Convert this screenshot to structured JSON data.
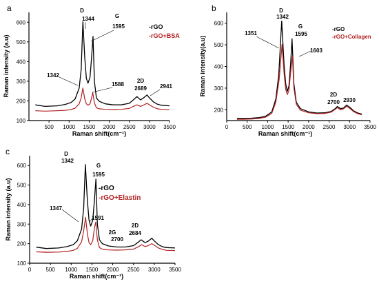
{
  "chart_data": [
    {
      "panel": "a",
      "type": "line",
      "xlabel": "Raman shift(cm⁻¹)",
      "ylabel": "Raman intensity (a.u)",
      "xlim": [
        0,
        3500
      ],
      "ylim": [
        100,
        650
      ],
      "xticks": [
        500,
        1000,
        1500,
        2000,
        2500,
        3000,
        3500
      ],
      "yticks": [
        100,
        200,
        300,
        400,
        500,
        600
      ],
      "series": [
        {
          "name": "-rGO",
          "color": "#000000",
          "x": [
            160,
            400,
            700,
            900,
            1050,
            1150,
            1250,
            1300,
            1344,
            1390,
            1430,
            1470,
            1520,
            1560,
            1595,
            1630,
            1680,
            1750,
            1900,
            2100,
            2300,
            2500,
            2600,
            2689,
            2780,
            2850,
            2941,
            3000,
            3100,
            3200,
            3300,
            3500
          ],
          "y": [
            180,
            172,
            175,
            182,
            192,
            210,
            265,
            360,
            602,
            420,
            315,
            290,
            320,
            420,
            528,
            300,
            215,
            198,
            185,
            180,
            180,
            188,
            205,
            222,
            205,
            215,
            230,
            215,
            195,
            183,
            178,
            175
          ]
        },
        {
          "name": "-rGO+BSA",
          "color": "#b22222",
          "x": [
            160,
            400,
            700,
            900,
            1050,
            1150,
            1250,
            1300,
            1342,
            1390,
            1430,
            1470,
            1520,
            1560,
            1588,
            1630,
            1680,
            1750,
            1900,
            2100,
            2300,
            2500,
            2600,
            2689,
            2780,
            2850,
            2941,
            3000,
            3100,
            3200,
            3300,
            3500
          ],
          "y": [
            150,
            148,
            150,
            152,
            156,
            163,
            185,
            215,
            265,
            210,
            185,
            178,
            185,
            215,
            243,
            190,
            165,
            160,
            157,
            156,
            157,
            162,
            172,
            180,
            172,
            178,
            188,
            180,
            168,
            160,
            157,
            155
          ]
        }
      ],
      "annotations": [
        "D",
        "1344",
        "G",
        "1595",
        "1342",
        "1588",
        "2D",
        "2689",
        "2941"
      ]
    },
    {
      "panel": "b",
      "type": "line",
      "xlabel": "Raman shift(cm⁻¹)",
      "ylabel": "Raman intensity(a.u)",
      "xlim": [
        0,
        3500
      ],
      "ylim": [
        150,
        650
      ],
      "xticks": [
        0,
        500,
        1000,
        1500,
        2000,
        2500,
        3000,
        3500
      ],
      "yticks": [
        200,
        300,
        400,
        500,
        600
      ],
      "series": [
        {
          "name": "-rGO",
          "color": "#000000",
          "x": [
            250,
            400,
            600,
            800,
            950,
            1100,
            1200,
            1270,
            1342,
            1400,
            1440,
            1480,
            1520,
            1560,
            1595,
            1640,
            1700,
            1800,
            2000,
            2200,
            2400,
            2550,
            2650,
            2700,
            2780,
            2850,
            2930,
            3000,
            3100,
            3200,
            3300
          ],
          "y": [
            160,
            160,
            161,
            164,
            170,
            190,
            250,
            360,
            610,
            410,
            320,
            285,
            310,
            410,
            528,
            320,
            235,
            205,
            190,
            185,
            186,
            192,
            205,
            215,
            205,
            208,
            222,
            212,
            195,
            185,
            180
          ]
        },
        {
          "name": "-rGO+Collagen",
          "color": "#b22222",
          "x": [
            250,
            400,
            600,
            800,
            950,
            1100,
            1200,
            1280,
            1351,
            1400,
            1440,
            1480,
            1520,
            1560,
            1603,
            1640,
            1700,
            1800,
            2000,
            2200,
            2400,
            2550,
            2650,
            2700,
            2780,
            2850,
            2930,
            3000,
            3100,
            3200,
            3300
          ],
          "y": [
            156,
            156,
            157,
            160,
            166,
            183,
            235,
            340,
            502,
            370,
            295,
            270,
            290,
            370,
            448,
            300,
            225,
            198,
            186,
            182,
            183,
            189,
            202,
            210,
            200,
            204,
            216,
            207,
            191,
            182,
            177
          ]
        }
      ],
      "annotations": [
        "D",
        "1342",
        "G",
        "1595",
        "1351",
        "1603",
        "2D",
        "2700",
        "2930"
      ]
    },
    {
      "panel": "c",
      "type": "line",
      "xlabel": "Raman shift(cm⁻¹)",
      "ylabel": "Raman intensity (a.u)",
      "xlim": [
        0,
        3500
      ],
      "ylim": [
        100,
        650
      ],
      "xticks": [
        0,
        500,
        1000,
        1500,
        2000,
        2500,
        3000,
        3500
      ],
      "yticks": [
        100,
        200,
        300,
        400,
        500,
        600
      ],
      "series": [
        {
          "name": "-rGO",
          "color": "#000000",
          "x": [
            160,
            400,
            700,
            900,
            1050,
            1150,
            1250,
            1300,
            1342,
            1390,
            1430,
            1470,
            1520,
            1560,
            1595,
            1630,
            1680,
            1750,
            1900,
            2100,
            2300,
            2500,
            2600,
            2684,
            2780,
            2850,
            2941,
            3000,
            3100,
            3200,
            3300,
            3500
          ],
          "y": [
            182,
            175,
            178,
            185,
            195,
            215,
            275,
            380,
            605,
            420,
            320,
            290,
            320,
            420,
            530,
            300,
            220,
            200,
            188,
            183,
            183,
            190,
            205,
            220,
            205,
            212,
            228,
            214,
            195,
            184,
            180,
            178
          ]
        },
        {
          "name": "-rGO+Elastin",
          "color": "#b22222",
          "x": [
            160,
            400,
            700,
            900,
            1050,
            1150,
            1250,
            1300,
            1347,
            1390,
            1430,
            1470,
            1520,
            1560,
            1591,
            1630,
            1680,
            1750,
            1900,
            2100,
            2300,
            2500,
            2600,
            2700,
            2780,
            2850,
            2941,
            3000,
            3100,
            3200,
            3300,
            3500
          ],
          "y": [
            158,
            156,
            157,
            160,
            166,
            176,
            210,
            265,
            335,
            250,
            205,
            195,
            215,
            280,
            310,
            220,
            180,
            172,
            168,
            167,
            168,
            172,
            182,
            195,
            185,
            190,
            200,
            192,
            178,
            170,
            166,
            165
          ]
        }
      ],
      "annotations": [
        "D",
        "1342",
        "G",
        "1595",
        "1347",
        "1591",
        "2G",
        "2700",
        "2D",
        "2684"
      ]
    }
  ]
}
